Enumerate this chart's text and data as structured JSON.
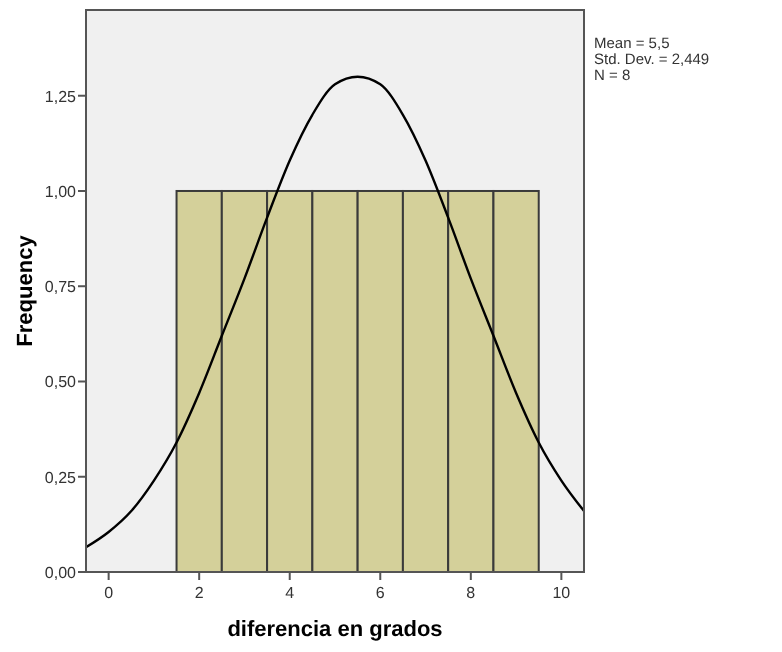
{
  "chart_data": {
    "type": "histogram",
    "xlabel": "diferencia en grados",
    "ylabel": "Frequency",
    "bins": [
      1.5,
      2.5,
      3.5,
      4.5,
      5.5,
      6.5,
      7.5,
      8.5,
      9.5
    ],
    "values": [
      1,
      1,
      1,
      1,
      1,
      1,
      1,
      1
    ],
    "color": "#d4d09a",
    "xlim": [
      -0.5,
      10.5
    ],
    "xticks": [
      0,
      2,
      4,
      6,
      8,
      10
    ],
    "ylim": [
      0,
      1.475
    ],
    "yticks": [
      {
        "value": 0,
        "label": "0,00"
      },
      {
        "value": 0.25,
        "label": "0,25"
      },
      {
        "value": 0.5,
        "label": "0,50"
      },
      {
        "value": 0.75,
        "label": "0,75"
      },
      {
        "value": 1,
        "label": "1,00"
      },
      {
        "value": 1.25,
        "label": "1,25"
      }
    ],
    "series": [
      {
        "type": "line",
        "color": "#000000",
        "x": [
          -0.5,
          0,
          0.5,
          1,
          1.5,
          2,
          2.5,
          3,
          3.5,
          4,
          4.5,
          5,
          5.5,
          6,
          6.5,
          7,
          7.5,
          8,
          8.5,
          9,
          9.5,
          10,
          10.5
        ],
        "values": [
          0.065,
          0.105,
          0.16,
          0.24,
          0.34,
          0.47,
          0.62,
          0.77,
          0.93,
          1.08,
          1.2,
          1.28,
          1.3,
          1.28,
          1.2,
          1.08,
          0.93,
          0.77,
          0.62,
          0.47,
          0.34,
          0.24,
          0.16
        ]
      }
    ],
    "annotations": [
      "Mean = 5,5",
      "Std. Dev. = 2,449",
      "N = 8"
    ]
  }
}
